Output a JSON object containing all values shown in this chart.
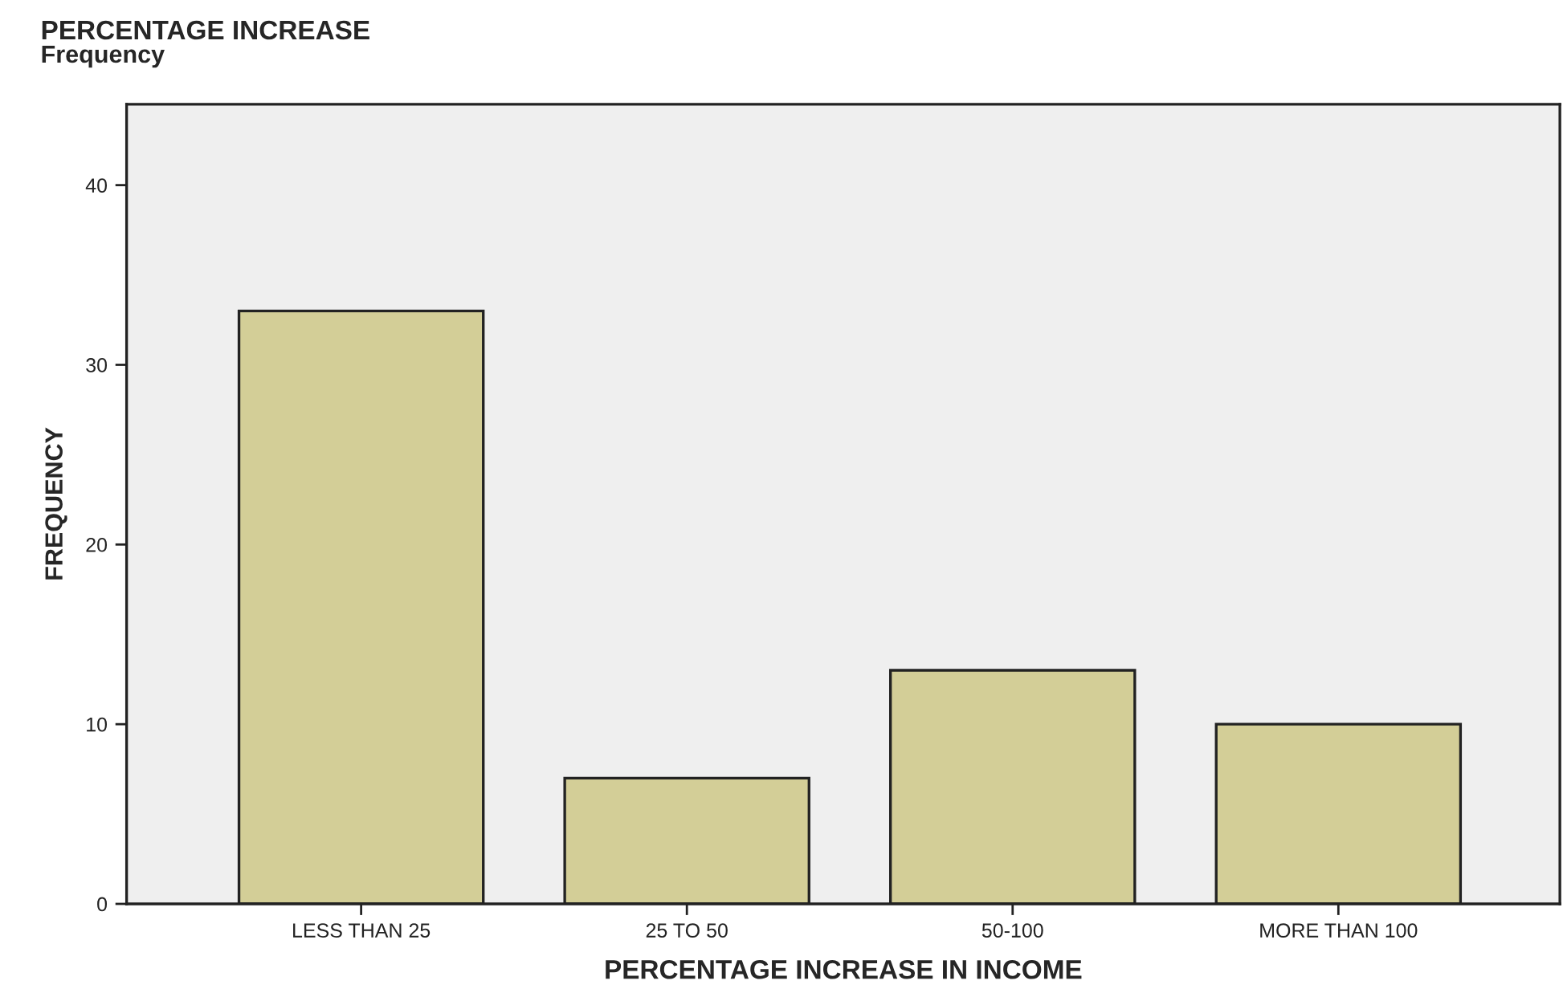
{
  "chart_data": {
    "type": "bar",
    "title": "PERCENTAGE INCREASE",
    "subtitle": "Frequency",
    "xlabel": "PERCENTAGE INCREASE IN INCOME",
    "ylabel": "FREQUENCY",
    "categories": [
      "LESS THAN 25",
      "25 TO 50",
      "50-100",
      "MORE THAN 100"
    ],
    "values": [
      33,
      7,
      13,
      10
    ],
    "color": "#d3ce97",
    "ylim": [
      0,
      44.5
    ],
    "yticks": [
      0,
      10,
      20,
      30,
      40
    ],
    "grid": false
  }
}
